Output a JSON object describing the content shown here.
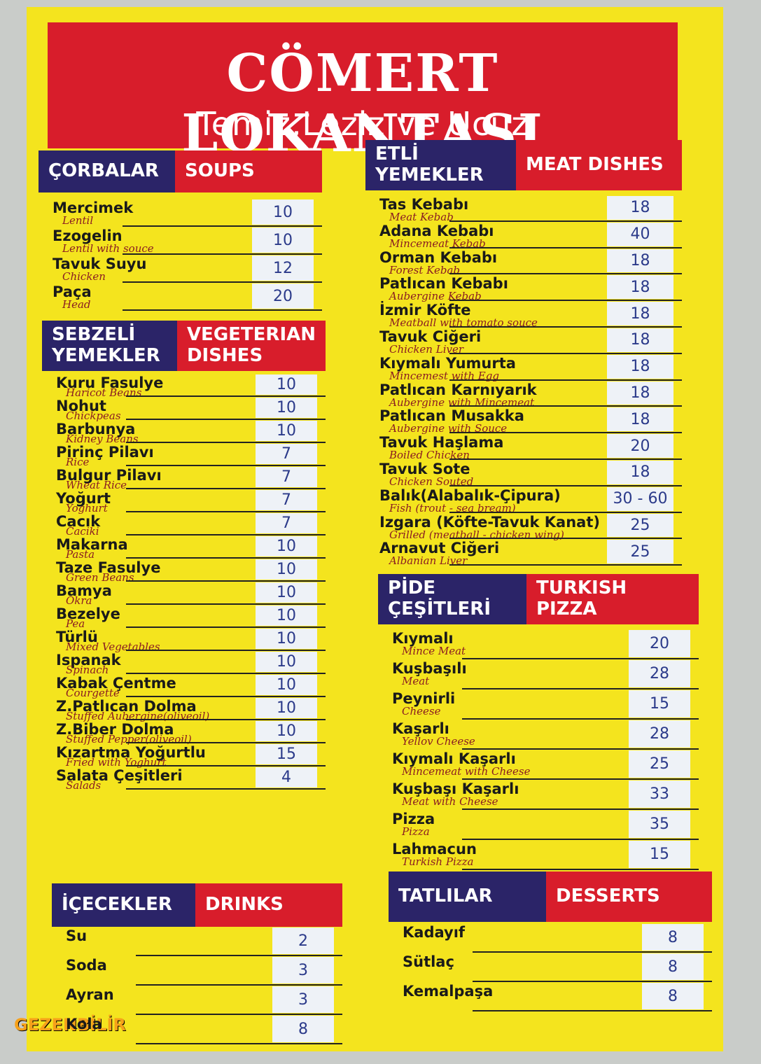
{
  "header": {
    "title": "CÖMERT LOKANTASI",
    "subtitle": "Temiz,Leziz ve Ucuz"
  },
  "sections": [
    {
      "tr": "ÇORBALAR",
      "en": "SOUPS",
      "items": [
        {
          "name": "Mercimek",
          "translation": "Lentil",
          "price": 10
        },
        {
          "name": "Ezogelin",
          "translation": "Lentil with souce",
          "price": 10
        },
        {
          "name": "Tavuk Suyu",
          "translation": "Chicken",
          "price": 12
        },
        {
          "name": "Paça",
          "translation": "Head",
          "price": 20
        }
      ]
    },
    {
      "tr": "SEBZELİ YEMEKLER",
      "en": "VEGETERIAN DISHES",
      "items": [
        {
          "name": "Kuru Fasulye",
          "translation": "Haricot Beans",
          "price": 10
        },
        {
          "name": "Nohut",
          "translation": "Chickpeas",
          "price": 10
        },
        {
          "name": "Barbunya",
          "translation": "Kidney Beans",
          "price": 10
        },
        {
          "name": "Pirinç Pilavı",
          "translation": "Rice",
          "price": 7
        },
        {
          "name": "Bulgur Pilavı",
          "translation": "Wheat Rice",
          "price": 7
        },
        {
          "name": "Yoğurt",
          "translation": "Yoghurt",
          "price": 7
        },
        {
          "name": "Cacık",
          "translation": "Caciki",
          "price": 7
        },
        {
          "name": "Makarna",
          "translation": "Pasta",
          "price": 10
        },
        {
          "name": "Taze Fasulye",
          "translation": "Green Beans",
          "price": 10
        },
        {
          "name": "Bamya",
          "translation": "Okra",
          "price": 10
        },
        {
          "name": "Bezelye",
          "translation": "Pea",
          "price": 10
        },
        {
          "name": "Türlü",
          "translation": "Mixed Vegetables",
          "price": 10
        },
        {
          "name": "Ispanak",
          "translation": "Spinach",
          "price": 10
        },
        {
          "name": "Kabak Çentme",
          "translation": "Courgette",
          "price": 10
        },
        {
          "name": "Z.Patlıcan Dolma",
          "translation": "Stuffed Aubergine(oliveoil)",
          "price": 10
        },
        {
          "name": "Z.Biber Dolma",
          "translation": "Stuffed Pepper(oliveoil)",
          "price": 10
        },
        {
          "name": "Kızartma Yoğurtlu",
          "translation": "Fried with Yoghurt",
          "price": 15
        },
        {
          "name": "Salata Çeşitleri",
          "translation": "Salads",
          "price": 4
        }
      ]
    },
    {
      "tr": "İÇECEKLER",
      "en": "DRINKS",
      "items": [
        {
          "name": "Su",
          "price": 2
        },
        {
          "name": "Soda",
          "price": 3
        },
        {
          "name": "Ayran",
          "price": 3
        },
        {
          "name": "Kola",
          "price": 8
        }
      ]
    },
    {
      "tr": "ETLİ YEMEKLER",
      "en": "MEAT DISHES",
      "items": [
        {
          "name": "Tas Kebabı",
          "translation": "Meat Kebab",
          "price": 18
        },
        {
          "name": "Adana Kebabı",
          "translation": "Mincemeat Kebab",
          "price": 40
        },
        {
          "name": "Orman Kebabı",
          "translation": "Forest Kebab",
          "price": 18
        },
        {
          "name": "Patlıcan Kebabı",
          "translation": "Aubergine Kebab",
          "price": 18
        },
        {
          "name": "İzmir Köfte",
          "translation": "Meatball with tomato souce",
          "price": 18
        },
        {
          "name": "Tavuk Ciğeri",
          "translation": "Chicken Liver",
          "price": 18
        },
        {
          "name": "Kıymalı Yumurta",
          "translation": "Mincemest with Egg",
          "price": 18
        },
        {
          "name": "Patlıcan Karnıyarık",
          "translation": "Aubergine with Mincemeat",
          "price": 18
        },
        {
          "name": "Patlıcan Musakka",
          "translation": "Aubergine with Souce",
          "price": 18
        },
        {
          "name": "Tavuk Haşlama",
          "translation": "Boiled Chicken",
          "price": 20
        },
        {
          "name": "Tavuk Sote",
          "translation": "Chicken Souted",
          "price": 18
        },
        {
          "name": "Balık(Alabalık-Çipura)",
          "translation": "Fish (trout - sea bream)",
          "price": "30 - 60"
        },
        {
          "name": "Izgara (Köfte-Tavuk Kanat)",
          "translation": "Grilled (meatball - chicken wing)",
          "price": 25
        },
        {
          "name": "Arnavut Ciğeri",
          "translation": "Albanian Liver",
          "price": 25
        }
      ]
    },
    {
      "tr": "PİDE ÇEŞİTLERİ",
      "en": "TURKISH PIZZA",
      "items": [
        {
          "name": "Kıymalı",
          "translation": "Mince Meat",
          "price": 20
        },
        {
          "name": "Kuşbaşılı",
          "translation": "Meat",
          "price": 28
        },
        {
          "name": "Peynirli",
          "translation": "Cheese",
          "price": 15
        },
        {
          "name": "Kaşarlı",
          "translation": "Yellov Cheese",
          "price": 28
        },
        {
          "name": "Kıymalı Kaşarlı",
          "translation": "Mincemeat with Cheese",
          "price": 25
        },
        {
          "name": "Kuşbaşı Kaşarlı",
          "translation": "Meat with Cheese",
          "price": 33
        },
        {
          "name": "Pizza",
          "translation": "Pizza",
          "price": 35
        },
        {
          "name": "Lahmacun",
          "translation": "Turkish Pizza",
          "price": 15
        }
      ]
    },
    {
      "tr": "TATLILAR",
      "en": "DESSERTS",
      "items": [
        {
          "name": "Kadayıf",
          "price": 8
        },
        {
          "name": "Sütlaç",
          "price": 8
        },
        {
          "name": "Kemalpaşa",
          "price": 8
        }
      ]
    }
  ],
  "watermark": "GEZENBİLİR"
}
